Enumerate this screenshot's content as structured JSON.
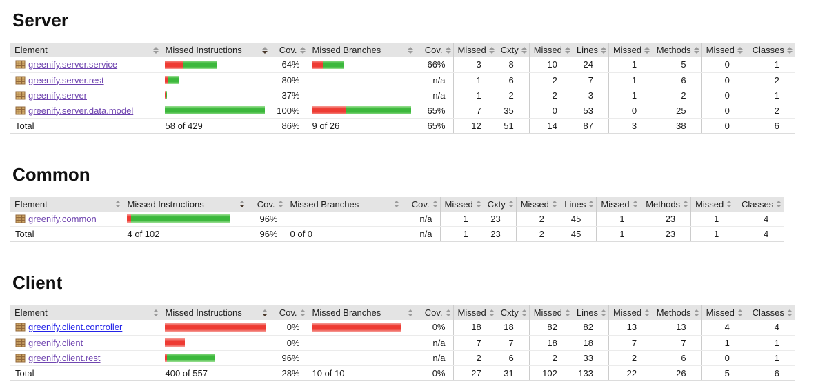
{
  "colors": {
    "link": "#2323e8",
    "link_visited": "#7046b0",
    "bar_red": "#ee3b33",
    "bar_red_edge": "#f69d97",
    "bar_green": "#3cb83c",
    "bar_green_edge": "#9be093",
    "header_bg": "#e4e4e4",
    "row_border": "#ebebeb",
    "group_border": "#cccccc",
    "sort_inactive": "#9a9a9a",
    "sort_active": "#4a382a",
    "icon_tan": "#cfa968",
    "icon_brown": "#93683c"
  },
  "columns": [
    {
      "label": "Element",
      "sort": "none"
    },
    {
      "label": "Missed Instructions",
      "sort": "desc"
    },
    {
      "label": "Cov.",
      "sort": "none"
    },
    {
      "label": "Missed Branches",
      "sort": "none"
    },
    {
      "label": "Cov.",
      "sort": "none"
    },
    {
      "label": "Missed",
      "sort": "none"
    },
    {
      "label": "Cxty",
      "sort": "none"
    },
    {
      "label": "Missed",
      "sort": "none"
    },
    {
      "label": "Lines",
      "sort": "none"
    },
    {
      "label": "Missed",
      "sort": "none"
    },
    {
      "label": "Methods",
      "sort": "none"
    },
    {
      "label": "Missed",
      "sort": "none"
    },
    {
      "label": "Classes",
      "sort": "none"
    }
  ],
  "sections": [
    {
      "title": "Server",
      "rows": [
        {
          "name": "greenify.server.service",
          "visited": true,
          "mi_red": 27,
          "mi_green": 48,
          "mi_cov": "64%",
          "mb_red": 16,
          "mb_green": 30,
          "mb_cov": "66%",
          "missed_cxty": "3",
          "cxty": "8",
          "missed_lines": "10",
          "lines": "24",
          "missed_methods": "1",
          "methods": "5",
          "missed_classes": "0",
          "classes": "1"
        },
        {
          "name": "greenify.server.rest",
          "visited": true,
          "mi_red": 4,
          "mi_green": 16,
          "mi_cov": "80%",
          "mb_red": 0,
          "mb_green": 0,
          "mb_cov": "n/a",
          "missed_cxty": "1",
          "cxty": "6",
          "missed_lines": "2",
          "lines": "7",
          "missed_methods": "1",
          "methods": "6",
          "missed_classes": "0",
          "classes": "2"
        },
        {
          "name": "greenify.server",
          "visited": true,
          "mi_red": 2,
          "mi_green": 1,
          "mi_cov": "37%",
          "mb_red": 0,
          "mb_green": 0,
          "mb_cov": "n/a",
          "missed_cxty": "1",
          "cxty": "2",
          "missed_lines": "2",
          "lines": "3",
          "missed_methods": "1",
          "methods": "2",
          "missed_classes": "0",
          "classes": "1"
        },
        {
          "name": "greenify.server.data.model",
          "visited": true,
          "mi_red": 0,
          "mi_green": 145,
          "mi_cov": "100%",
          "mb_red": 50,
          "mb_green": 94,
          "mb_cov": "65%",
          "missed_cxty": "7",
          "cxty": "35",
          "missed_lines": "0",
          "lines": "53",
          "missed_methods": "0",
          "methods": "25",
          "missed_classes": "0",
          "classes": "2"
        }
      ],
      "total": {
        "label": "Total",
        "mi": "58 of 429",
        "mi_cov": "86%",
        "mb": "9 of 26",
        "mb_cov": "65%",
        "missed_cxty": "12",
        "cxty": "51",
        "missed_lines": "14",
        "lines": "87",
        "missed_methods": "3",
        "methods": "38",
        "missed_classes": "0",
        "classes": "6"
      }
    },
    {
      "title": "Common",
      "rows": [
        {
          "name": "greenify.common",
          "visited": true,
          "mi_red": 6,
          "mi_green": 144,
          "mi_cov": "96%",
          "mb_red": 0,
          "mb_green": 0,
          "mb_cov": "n/a",
          "missed_cxty": "1",
          "cxty": "23",
          "missed_lines": "2",
          "lines": "45",
          "missed_methods": "1",
          "methods": "23",
          "missed_classes": "1",
          "classes": "4"
        }
      ],
      "total": {
        "label": "Total",
        "mi": "4 of 102",
        "mi_cov": "96%",
        "mb": "0 of 0",
        "mb_cov": "n/a",
        "missed_cxty": "1",
        "cxty": "23",
        "missed_lines": "2",
        "lines": "45",
        "missed_methods": "1",
        "methods": "23",
        "missed_classes": "1",
        "classes": "4"
      }
    },
    {
      "title": "Client",
      "rows": [
        {
          "name": "greenify.client.controller",
          "visited": false,
          "mi_red": 147,
          "mi_green": 0,
          "mi_cov": "0%",
          "mb_red": 130,
          "mb_green": 0,
          "mb_cov": "0%",
          "missed_cxty": "18",
          "cxty": "18",
          "missed_lines": "82",
          "lines": "82",
          "missed_methods": "13",
          "methods": "13",
          "missed_classes": "4",
          "classes": "4"
        },
        {
          "name": "greenify.client",
          "visited": true,
          "mi_red": 29,
          "mi_green": 0,
          "mi_cov": "0%",
          "mb_red": 0,
          "mb_green": 0,
          "mb_cov": "n/a",
          "missed_cxty": "7",
          "cxty": "7",
          "missed_lines": "18",
          "lines": "18",
          "missed_methods": "7",
          "methods": "7",
          "missed_classes": "1",
          "classes": "1"
        },
        {
          "name": "greenify.client.rest",
          "visited": true,
          "mi_red": 3,
          "mi_green": 69,
          "mi_cov": "96%",
          "mb_red": 0,
          "mb_green": 0,
          "mb_cov": "n/a",
          "missed_cxty": "2",
          "cxty": "6",
          "missed_lines": "2",
          "lines": "33",
          "missed_methods": "2",
          "methods": "6",
          "missed_classes": "0",
          "classes": "1"
        }
      ],
      "total": {
        "label": "Total",
        "mi": "400 of 557",
        "mi_cov": "28%",
        "mb": "10 of 10",
        "mb_cov": "0%",
        "missed_cxty": "27",
        "cxty": "31",
        "missed_lines": "102",
        "lines": "133",
        "missed_methods": "22",
        "methods": "26",
        "missed_classes": "5",
        "classes": "6"
      }
    }
  ]
}
